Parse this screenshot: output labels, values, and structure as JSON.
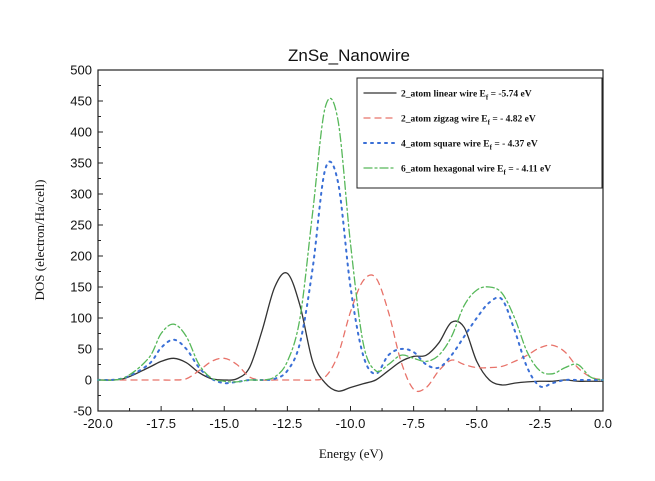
{
  "chart_data": {
    "type": "line",
    "title": "ZnSe_Nanowire",
    "xlabel": "Energy (eV)",
    "ylabel": "DOS (electron/Ha/cell)",
    "xlim": [
      -20.0,
      0.0
    ],
    "ylim": [
      -50,
      500
    ],
    "xticks": [
      "-20.0",
      "-17.5",
      "-15.0",
      "-12.5",
      "-10.0",
      "-7.5",
      "-5.0",
      "-2.5",
      "0.0"
    ],
    "yticks": [
      "-50",
      "0",
      "50",
      "100",
      "150",
      "200",
      "250",
      "300",
      "350",
      "400",
      "450",
      "500"
    ],
    "x": [
      -20.0,
      -19.0,
      -18.0,
      -17.5,
      -17.0,
      -16.5,
      -16.0,
      -15.5,
      -15.0,
      -14.5,
      -14.0,
      -13.5,
      -13.0,
      -12.5,
      -12.0,
      -11.5,
      -11.0,
      -10.5,
      -10.0,
      -9.5,
      -9.0,
      -8.5,
      -8.0,
      -7.5,
      -7.0,
      -6.5,
      -6.0,
      -5.5,
      -5.0,
      -4.5,
      -4.0,
      -3.5,
      -3.0,
      -2.5,
      -2.0,
      -1.5,
      -1.0,
      -0.5,
      0.0
    ],
    "series": [
      {
        "name": "2_atom linear wire",
        "ef_label": " = -5.74 eV",
        "color": "#333333",
        "dash": "none",
        "values": [
          0,
          2,
          20,
          30,
          35,
          28,
          12,
          2,
          0,
          2,
          20,
          80,
          150,
          172,
          120,
          30,
          -5,
          -18,
          -12,
          -6,
          0,
          15,
          30,
          38,
          40,
          60,
          93,
          85,
          30,
          0,
          -8,
          -5,
          -3,
          -2,
          -2,
          0,
          -2,
          -2,
          -2
        ]
      },
      {
        "name": "2_atom zigzag wire",
        "ef_label": " = - 4.82 eV",
        "color": "#e8736a",
        "dash": "6,5",
        "values": [
          0,
          0,
          0,
          0,
          0,
          2,
          15,
          30,
          35,
          25,
          5,
          0,
          0,
          0,
          0,
          0,
          5,
          40,
          110,
          160,
          165,
          110,
          30,
          -15,
          -12,
          15,
          32,
          25,
          20,
          20,
          22,
          30,
          40,
          52,
          56,
          45,
          20,
          5,
          0
        ]
      },
      {
        "name": "4_atom square wire",
        "ef_label": " = - 4.37 eV",
        "color": "#3a6fd6",
        "dash": "2,5",
        "values": [
          0,
          3,
          25,
          52,
          65,
          50,
          20,
          2,
          -5,
          -3,
          0,
          0,
          2,
          15,
          60,
          180,
          340,
          320,
          150,
          40,
          10,
          40,
          50,
          45,
          25,
          20,
          40,
          70,
          100,
          125,
          130,
          80,
          20,
          -10,
          -5,
          0,
          0,
          0,
          0
        ]
      },
      {
        "name": "6_atom hexagonal wire",
        "ef_label": " = - 4.11 eV",
        "color": "#57b85a",
        "dash": "8,3,2,3",
        "values": [
          0,
          3,
          35,
          75,
          90,
          70,
          25,
          3,
          -2,
          -3,
          0,
          0,
          5,
          30,
          100,
          270,
          440,
          420,
          220,
          60,
          15,
          25,
          40,
          35,
          30,
          40,
          70,
          120,
          145,
          150,
          140,
          100,
          45,
          15,
          10,
          20,
          25,
          5,
          0
        ]
      }
    ],
    "legend": {
      "position": "top-right",
      "subscript": "f",
      "prefix": "E"
    },
    "grid": false
  }
}
